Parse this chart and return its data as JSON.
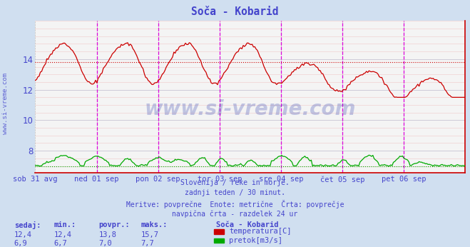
{
  "title": "Soča - Kobarid",
  "bg_color": "#d0dff0",
  "plot_bg_color": "#f4f4f4",
  "axis_label_color": "#4444cc",
  "title_color": "#4444cc",
  "ylim": [
    6.55,
    16.5
  ],
  "yticks": [
    8,
    10,
    12,
    14
  ],
  "xlabel_days": [
    "sob 31 avg",
    "ned 01 sep",
    "pon 02 sep",
    "tor 03 sep",
    "sre 04 sep",
    "čet 05 sep",
    "pet 06 sep"
  ],
  "temp_color": "#cc0000",
  "flow_color": "#00aa00",
  "avg_temp": 13.8,
  "avg_flow": 7.0,
  "footer_lines": [
    "Slovenija / reke in morje.",
    "zadnji teden / 30 minut.",
    "Meritve: povprečne  Enote: metrične  Črta: povprečje",
    "navpična črta - razdelek 24 ur"
  ],
  "legend_title": "Soča - Kobarid",
  "legend_items": [
    {
      "label": "temperatura[C]",
      "color": "#cc0000"
    },
    {
      "label": "pretok[m3/s]",
      "color": "#00aa00"
    }
  ],
  "stats_headers": [
    "sedaj:",
    "min.:",
    "povpr.:",
    "maks.:"
  ],
  "stats_temp": [
    "12,4",
    "12,4",
    "13,8",
    "15,7"
  ],
  "stats_flow": [
    "6,9",
    "6,7",
    "7,0",
    "7,7"
  ],
  "vline_color": "#dd00dd",
  "hline_avg_color_temp": "#cc0000",
  "hline_avg_color_flow": "#00aa00",
  "watermark_text": "www.si-vreme.com",
  "watermark_color": "#2233aa"
}
